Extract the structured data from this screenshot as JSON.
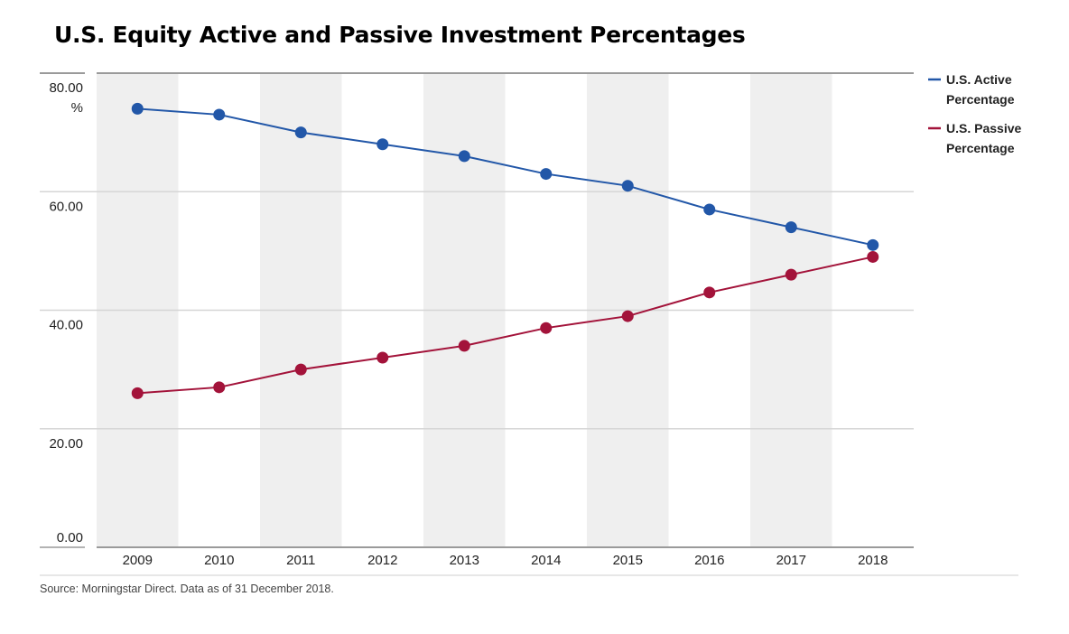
{
  "chart_data": {
    "type": "line",
    "title": "U.S. Equity Active and Passive Investment Percentages",
    "x": [
      "2009",
      "2010",
      "2011",
      "2012",
      "2013",
      "2014",
      "2015",
      "2016",
      "2017",
      "2018"
    ],
    "series": [
      {
        "name": "U.S. Active Percentage",
        "name_lines": [
          "U.S. Active",
          "Percentage"
        ],
        "color": "#2257a8",
        "values": [
          74,
          73,
          70,
          68,
          66,
          63,
          61,
          57,
          54,
          51
        ]
      },
      {
        "name": "U.S. Passive Percentage",
        "name_lines": [
          "U.S. Passive",
          "Percentage"
        ],
        "color": "#a3133a",
        "values": [
          26,
          27,
          30,
          32,
          34,
          37,
          39,
          43,
          46,
          49
        ]
      }
    ],
    "yticks": [
      0,
      20,
      40,
      60,
      80
    ],
    "ytick_labels": [
      "0.00",
      "20.00",
      "40.00",
      "60.00",
      "80.00"
    ],
    "ytick_suffix": "%",
    "ylim": [
      0,
      80
    ],
    "grid": "horizontal",
    "legend": "top-right",
    "source": "Source: Morningstar Direct. Data as of 31 December 2018."
  }
}
